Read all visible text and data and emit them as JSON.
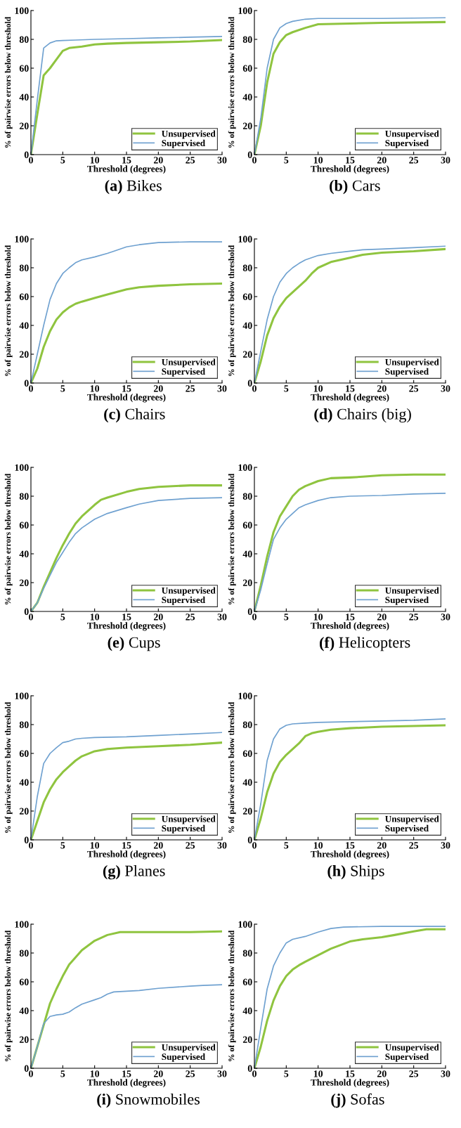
{
  "chart_data": [
    {
      "type": "line",
      "title": "(a) Bikes",
      "xlabel": "Threshold (degrees)",
      "ylabel": "% of pairwise errors below threshold",
      "xlim": [
        0,
        30
      ],
      "ylim": [
        0,
        100
      ],
      "xticks": [
        0,
        5,
        10,
        15,
        20,
        25,
        30
      ],
      "yticks": [
        0,
        20,
        40,
        60,
        80,
        100
      ],
      "legend": "bottom right",
      "series": [
        {
          "name": "Unsupervised",
          "color": "#8fc43f",
          "x": [
            0,
            1,
            2,
            3,
            4,
            5,
            6,
            7,
            8,
            10,
            12,
            15,
            20,
            25,
            30
          ],
          "values": [
            0,
            28,
            55,
            60,
            66,
            72,
            74,
            74.5,
            75,
            76.5,
            77,
            77.5,
            78,
            78.5,
            79.5
          ]
        },
        {
          "name": "Supervised",
          "color": "#6fa1d0",
          "x": [
            0,
            1,
            2,
            3,
            4,
            5,
            7,
            10,
            15,
            20,
            25,
            30
          ],
          "values": [
            0,
            38,
            74,
            77.5,
            79,
            79.2,
            79.5,
            80,
            80.5,
            81,
            81.5,
            82
          ]
        }
      ]
    },
    {
      "type": "line",
      "title": "(b) Cars",
      "xlabel": "Threshold (degrees)",
      "ylabel": "% of pairwise errors below threshold",
      "xlim": [
        0,
        30
      ],
      "ylim": [
        0,
        100
      ],
      "xticks": [
        0,
        5,
        10,
        15,
        20,
        25,
        30
      ],
      "yticks": [
        0,
        20,
        40,
        60,
        80,
        100
      ],
      "legend": "bottom right",
      "series": [
        {
          "name": "Unsupervised",
          "color": "#8fc43f",
          "x": [
            0,
            1,
            2,
            3,
            4,
            5,
            6,
            8,
            10,
            15,
            20,
            30
          ],
          "values": [
            0,
            20,
            50,
            70,
            78,
            83,
            85,
            88,
            90.5,
            91,
            91.5,
            92
          ]
        },
        {
          "name": "Supervised",
          "color": "#6fa1d0",
          "x": [
            0,
            1,
            2,
            3,
            4,
            5,
            6,
            8,
            10,
            20,
            30
          ],
          "values": [
            0,
            25,
            60,
            80,
            88,
            91,
            92.5,
            94,
            94.5,
            94.5,
            95
          ]
        }
      ]
    },
    {
      "type": "line",
      "title": "(c) Chairs",
      "xlabel": "Threshold (degrees)",
      "ylabel": "% of pairwise errors below threshold",
      "xlim": [
        0,
        30
      ],
      "ylim": [
        0,
        100
      ],
      "xticks": [
        0,
        5,
        10,
        15,
        20,
        25,
        30
      ],
      "yticks": [
        0,
        20,
        40,
        60,
        80,
        100
      ],
      "legend": "bottom right",
      "series": [
        {
          "name": "Unsupervised",
          "color": "#8fc43f",
          "x": [
            0,
            1,
            2,
            3,
            4,
            5,
            6,
            7,
            8,
            10,
            12,
            15,
            17,
            20,
            25,
            30
          ],
          "values": [
            0,
            10,
            25,
            36,
            44,
            49,
            52.5,
            55,
            56.5,
            59,
            61.5,
            65,
            66.5,
            67.5,
            68.5,
            69
          ]
        },
        {
          "name": "Supervised",
          "color": "#6fa1d0",
          "x": [
            0,
            1,
            2,
            3,
            4,
            5,
            6,
            7,
            8,
            10,
            12,
            13,
            15,
            17,
            20,
            25,
            30
          ],
          "values": [
            0,
            20,
            40,
            58,
            69,
            76,
            80,
            83.5,
            85.5,
            87.5,
            90,
            91.5,
            94.5,
            96,
            97.5,
            98,
            98
          ]
        }
      ]
    },
    {
      "type": "line",
      "title": "(d) Chairs (big)",
      "xlabel": "Threshold (degrees)",
      "ylabel": "% of pairwise errors below threshold",
      "xlim": [
        0,
        30
      ],
      "ylim": [
        0,
        100
      ],
      "xticks": [
        0,
        5,
        10,
        15,
        20,
        25,
        30
      ],
      "yticks": [
        0,
        20,
        40,
        60,
        80,
        100
      ],
      "legend": "bottom right",
      "series": [
        {
          "name": "Unsupervised",
          "color": "#8fc43f",
          "x": [
            0,
            1,
            2,
            3,
            4,
            5,
            6,
            7,
            8,
            9,
            10,
            12,
            15,
            17,
            20,
            25,
            30
          ],
          "values": [
            0,
            15,
            33,
            45,
            53,
            59,
            63,
            67,
            71,
            76,
            80,
            84,
            87,
            89,
            90.5,
            91.5,
            93
          ]
        },
        {
          "name": "Supervised",
          "color": "#6fa1d0",
          "x": [
            0,
            1,
            2,
            3,
            4,
            5,
            6,
            7,
            8,
            10,
            12,
            15,
            17,
            20,
            25,
            30
          ],
          "values": [
            0,
            22,
            44,
            60,
            70,
            76,
            80,
            83,
            85.5,
            88.5,
            90,
            91.5,
            92.5,
            93,
            94,
            95
          ]
        }
      ]
    },
    {
      "type": "line",
      "title": "(e) Cups",
      "xlabel": "Threshold (degrees)",
      "ylabel": "% of pairwise errors below threshold",
      "xlim": [
        0,
        30
      ],
      "ylim": [
        0,
        100
      ],
      "xticks": [
        0,
        5,
        10,
        15,
        20,
        25,
        30
      ],
      "yticks": [
        0,
        20,
        40,
        60,
        80,
        100
      ],
      "legend": "bottom right",
      "series": [
        {
          "name": "Unsupervised",
          "color": "#8fc43f",
          "x": [
            0,
            1,
            2,
            3,
            4,
            5,
            6,
            7,
            8,
            10,
            11,
            12,
            15,
            17,
            20,
            25,
            30
          ],
          "values": [
            0,
            6,
            17,
            27,
            37,
            46,
            54,
            61,
            66,
            74,
            77.5,
            79,
            83,
            85,
            86.5,
            87.5,
            87.5
          ]
        },
        {
          "name": "Supervised",
          "color": "#6fa1d0",
          "x": [
            0,
            1,
            2,
            3,
            4,
            5,
            6,
            7,
            8,
            10,
            12,
            15,
            17,
            20,
            25,
            30
          ],
          "values": [
            0,
            6,
            16,
            25,
            34,
            41,
            48,
            54,
            58,
            64,
            68,
            72,
            74.5,
            77,
            78.5,
            79
          ]
        }
      ]
    },
    {
      "type": "line",
      "title": "(f) Helicopters",
      "xlabel": "Threshold (degrees)",
      "ylabel": "% of pairwise errors below threshold",
      "xlim": [
        0,
        30
      ],
      "ylim": [
        0,
        100
      ],
      "xticks": [
        0,
        5,
        10,
        15,
        20,
        25,
        30
      ],
      "yticks": [
        0,
        20,
        40,
        60,
        80,
        100
      ],
      "legend": "bottom right",
      "series": [
        {
          "name": "Unsupervised",
          "color": "#8fc43f",
          "x": [
            0,
            1,
            2,
            3,
            4,
            5,
            6,
            7,
            8,
            10,
            12,
            15,
            17,
            20,
            25,
            30
          ],
          "values": [
            0,
            18,
            38,
            55,
            66,
            73,
            80,
            84.5,
            87,
            90.5,
            92.5,
            93,
            93.5,
            94.5,
            95,
            95
          ]
        },
        {
          "name": "Supervised",
          "color": "#6fa1d0",
          "x": [
            0,
            1,
            2,
            3,
            4,
            5,
            6,
            7,
            8,
            10,
            12,
            15,
            20,
            25,
            30
          ],
          "values": [
            0,
            15,
            33,
            50,
            58,
            64,
            68,
            72,
            74,
            77,
            79,
            80,
            80.5,
            81.5,
            82
          ]
        }
      ]
    },
    {
      "type": "line",
      "title": "(g) Planes",
      "xlabel": "Threshold (degrees)",
      "ylabel": "% of pairwise errors below threshold",
      "xlim": [
        0,
        30
      ],
      "ylim": [
        0,
        100
      ],
      "xticks": [
        0,
        5,
        10,
        15,
        20,
        25,
        30
      ],
      "yticks": [
        0,
        20,
        40,
        60,
        80,
        100
      ],
      "legend": "bottom right",
      "series": [
        {
          "name": "Unsupervised",
          "color": "#8fc43f",
          "x": [
            0,
            1,
            2,
            3,
            4,
            5,
            6,
            7,
            8,
            10,
            12,
            15,
            20,
            25,
            30
          ],
          "values": [
            0,
            13,
            26,
            35,
            42,
            47,
            51,
            55,
            58,
            61.5,
            63,
            64,
            65,
            66,
            67.5
          ]
        },
        {
          "name": "Supervised",
          "color": "#6fa1d0",
          "x": [
            0,
            1,
            2,
            3,
            4,
            5,
            6,
            7,
            8,
            10,
            15,
            20,
            25,
            30
          ],
          "values": [
            0,
            30,
            53,
            60,
            64,
            67.5,
            68.5,
            70,
            70.5,
            71,
            71.5,
            72.5,
            73.5,
            74.5
          ]
        }
      ]
    },
    {
      "type": "line",
      "title": "(h) Ships",
      "xlabel": "Threshold (degrees)",
      "ylabel": "% of pairwise errors below threshold",
      "xlim": [
        0,
        30
      ],
      "ylim": [
        0,
        100
      ],
      "xticks": [
        0,
        5,
        10,
        15,
        20,
        25,
        30
      ],
      "yticks": [
        0,
        20,
        40,
        60,
        80,
        100
      ],
      "legend": "bottom right",
      "series": [
        {
          "name": "Unsupervised",
          "color": "#8fc43f",
          "x": [
            0,
            1,
            2,
            3,
            4,
            5,
            6,
            7,
            8,
            9,
            10,
            12,
            15,
            20,
            25,
            30
          ],
          "values": [
            0,
            15,
            33,
            46,
            54,
            59,
            63,
            67,
            72,
            74,
            75,
            76.5,
            77.5,
            78.5,
            79,
            79.5
          ]
        },
        {
          "name": "Supervised",
          "color": "#6fa1d0",
          "x": [
            0,
            1,
            2,
            3,
            4,
            5,
            6,
            8,
            10,
            15,
            20,
            25,
            30
          ],
          "values": [
            0,
            25,
            55,
            70,
            77,
            79.5,
            80.5,
            81,
            81.5,
            82,
            82.5,
            83,
            84
          ]
        }
      ]
    },
    {
      "type": "line",
      "title": "(i) Snowmobiles",
      "xlabel": "Threshold (degrees)",
      "ylabel": "% of pairwise errors below threshold",
      "xlim": [
        0,
        30
      ],
      "ylim": [
        0,
        100
      ],
      "xticks": [
        0,
        5,
        10,
        15,
        20,
        25,
        30
      ],
      "yticks": [
        0,
        20,
        40,
        60,
        80,
        100
      ],
      "legend": "bottom right",
      "series": [
        {
          "name": "Unsupervised",
          "color": "#8fc43f",
          "x": [
            0,
            1,
            2,
            3,
            4,
            5,
            6,
            7,
            8,
            10,
            12,
            14,
            15,
            20,
            25,
            30
          ],
          "values": [
            0,
            15,
            30,
            45,
            55,
            64,
            72,
            77,
            82,
            88.5,
            92.5,
            94.5,
            94.5,
            94.5,
            94.5,
            95
          ]
        },
        {
          "name": "Supervised",
          "color": "#6fa1d0",
          "x": [
            0,
            1,
            2,
            3,
            4,
            5,
            6,
            7,
            8,
            10,
            11,
            12,
            13,
            15,
            17,
            20,
            25,
            27,
            30
          ],
          "values": [
            0,
            15,
            31,
            36,
            37,
            37.5,
            39,
            42,
            44.5,
            47.5,
            49,
            51.5,
            53,
            53.5,
            54,
            55.5,
            57,
            57.5,
            58
          ]
        }
      ]
    },
    {
      "type": "line",
      "title": "(j) Sofas",
      "xlabel": "Threshold (degrees)",
      "ylabel": "% of pairwise errors below threshold",
      "xlim": [
        0,
        30
      ],
      "ylim": [
        0,
        100
      ],
      "xticks": [
        0,
        5,
        10,
        15,
        20,
        25,
        30
      ],
      "yticks": [
        0,
        20,
        40,
        60,
        80,
        100
      ],
      "legend": "bottom right",
      "series": [
        {
          "name": "Unsupervised",
          "color": "#8fc43f",
          "x": [
            0,
            1,
            2,
            3,
            4,
            5,
            6,
            7,
            8,
            10,
            12,
            15,
            17,
            20,
            22,
            25,
            27,
            30
          ],
          "values": [
            0,
            15,
            33,
            47,
            57,
            64,
            68.5,
            71.5,
            74,
            78.5,
            83,
            88,
            89.5,
            91,
            92.5,
            95,
            96.5,
            96.5
          ]
        },
        {
          "name": "Supervised",
          "color": "#6fa1d0",
          "x": [
            0,
            1,
            2,
            3,
            4,
            5,
            6,
            8,
            10,
            12,
            14,
            20,
            30
          ],
          "values": [
            0,
            28,
            55,
            71,
            80,
            87,
            89.5,
            91.5,
            94.5,
            97,
            98,
            98.5,
            98.5
          ]
        }
      ]
    }
  ]
}
